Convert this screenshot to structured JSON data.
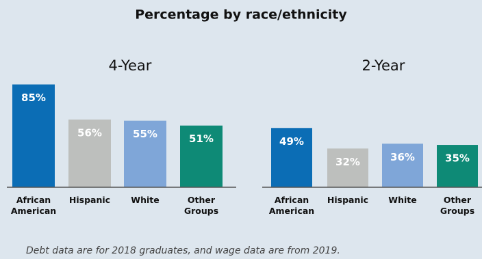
{
  "title": "Percentage by race/ethnicity",
  "note": "Debt data are for 2018 graduates, and wage data are from 2019.",
  "chart_data": [
    {
      "type": "bar",
      "title": "4-Year",
      "categories": [
        "African American",
        "Hispanic",
        "White",
        "Other Groups"
      ],
      "values": [
        85,
        56,
        55,
        51
      ],
      "value_labels": [
        "85%",
        "56%",
        "55%",
        "51%"
      ],
      "colors": [
        "#0b6db5",
        "#bdbfbd",
        "#7fa6d8",
        "#0e8a76"
      ]
    },
    {
      "type": "bar",
      "title": "2-Year",
      "categories": [
        "African American",
        "Hispanic",
        "White",
        "Other Groups"
      ],
      "values": [
        49,
        32,
        36,
        35
      ],
      "value_labels": [
        "49%",
        "32%",
        "36%",
        "35%"
      ],
      "colors": [
        "#0b6db5",
        "#bdbfbd",
        "#7fa6d8",
        "#0e8a76"
      ]
    }
  ]
}
